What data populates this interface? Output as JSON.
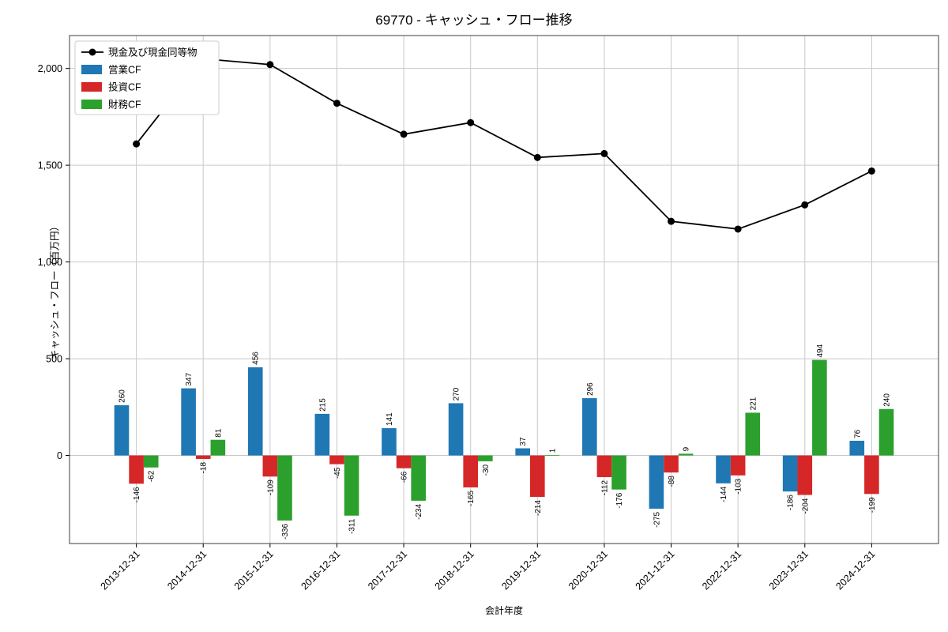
{
  "title": "69770 - キャッシュ・フロー推移",
  "chart_data": {
    "type": "bar",
    "title": "69770 - キャッシュ・フロー推移",
    "xlabel": "会計年度",
    "ylabel": "キャッシュ・フロー（百万円）",
    "categories": [
      "2013-12-31",
      "2014-12-31",
      "2015-12-31",
      "2016-12-31",
      "2017-12-31",
      "2018-12-31",
      "2019-12-31",
      "2020-12-31",
      "2021-12-31",
      "2022-12-31",
      "2023-12-31",
      "2024-12-31"
    ],
    "series": [
      {
        "name": "営業CF",
        "kind": "bar",
        "color": "#1f77b4",
        "values": [
          260,
          347,
          456,
          215,
          141,
          270,
          37,
          296,
          -275,
          -144,
          -186,
          76
        ]
      },
      {
        "name": "投資CF",
        "kind": "bar",
        "color": "#d62728",
        "values": [
          -146,
          -18,
          -109,
          -45,
          -66,
          -165,
          -214,
          -112,
          -88,
          -103,
          -204,
          -199
        ]
      },
      {
        "name": "財務CF",
        "kind": "bar",
        "color": "#2ca02c",
        "values": [
          -62,
          81,
          -336,
          -311,
          -234,
          -30,
          1,
          -176,
          9,
          221,
          494,
          240
        ]
      },
      {
        "name": "現金及び現金同等物",
        "kind": "line",
        "color": "#000000",
        "values": [
          1610,
          2050,
          2020,
          1820,
          1660,
          1720,
          1540,
          1560,
          1210,
          1170,
          1295,
          1470
        ]
      }
    ],
    "ylim": [
      -455,
      2170
    ],
    "yticks": [
      0,
      500,
      1000,
      1500,
      2000
    ],
    "ytick_labels": [
      "0",
      "500",
      "1,000",
      "1,500",
      "2,000"
    ],
    "grid": true,
    "legend_position": "upper left",
    "colors": {
      "grid": "#c9c9c9",
      "frame": "#3c3c3c",
      "background": "#ffffff"
    }
  }
}
